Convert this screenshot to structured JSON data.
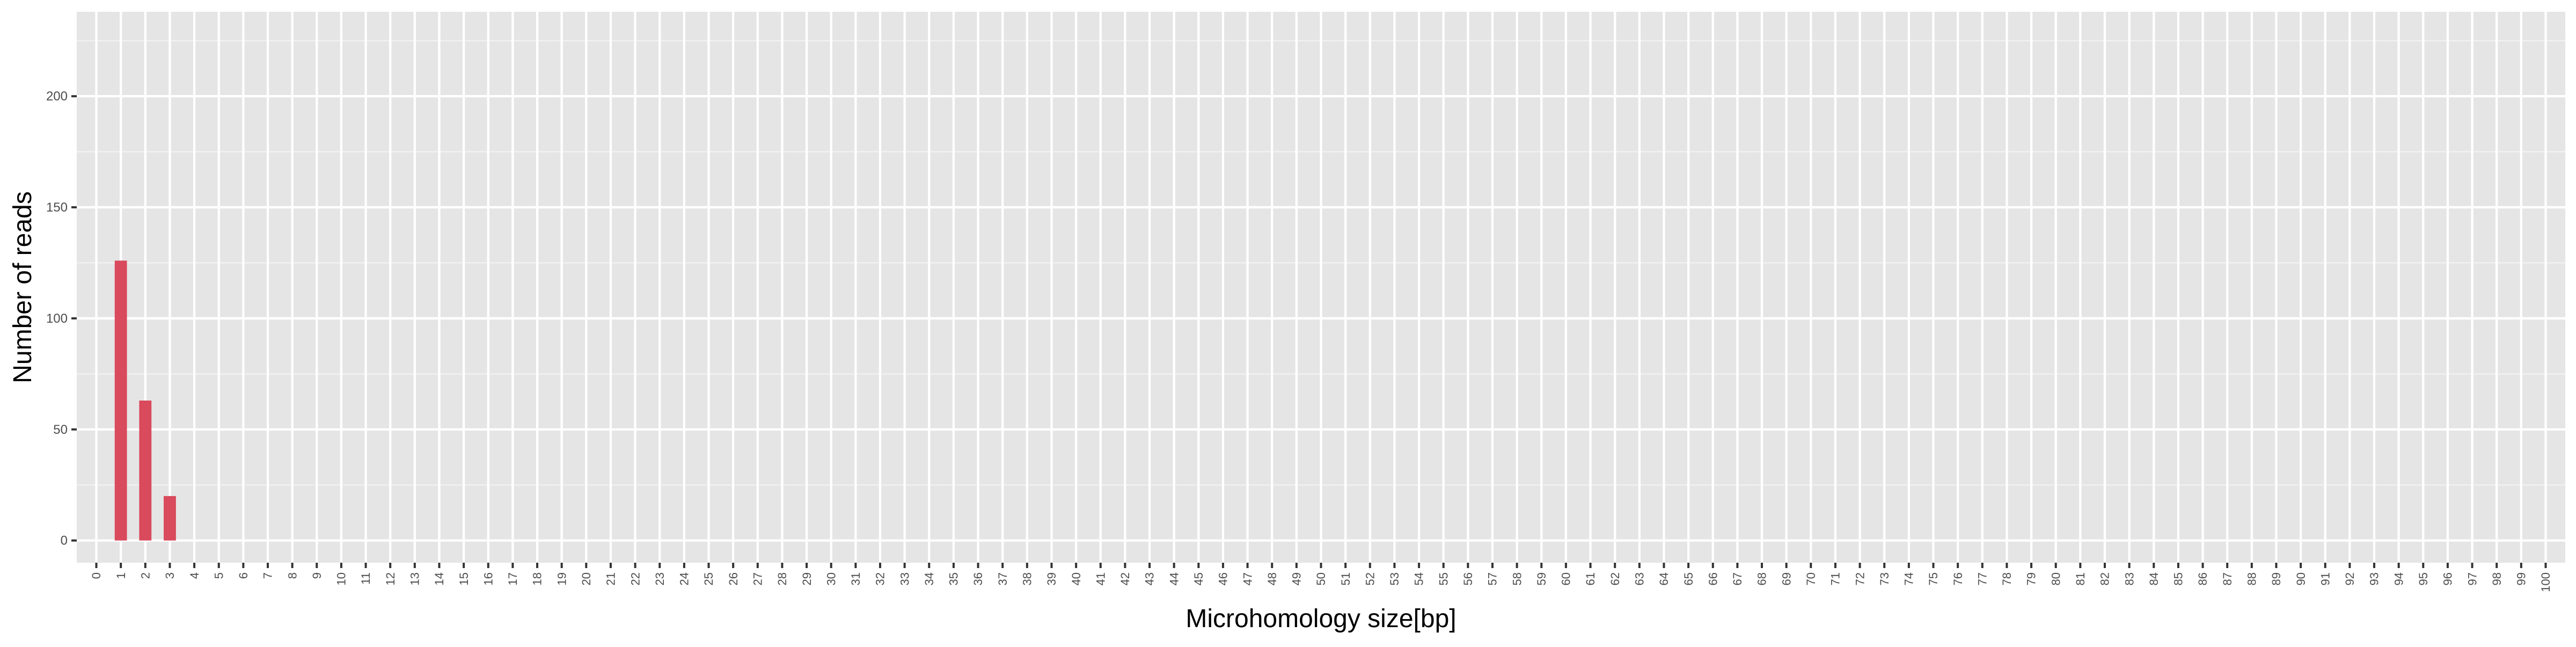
{
  "chart_data": {
    "type": "bar",
    "x": [
      0,
      1,
      2,
      3,
      4,
      5,
      6,
      7,
      8,
      9,
      10,
      11,
      12,
      13,
      14,
      15,
      16,
      17,
      18,
      19,
      20,
      21,
      22,
      23,
      24,
      25,
      26,
      27,
      28,
      29,
      30,
      31,
      32,
      33,
      34,
      35,
      36,
      37,
      38,
      39,
      40,
      41,
      42,
      43,
      44,
      45,
      46,
      47,
      48,
      49,
      50,
      51,
      52,
      53,
      54,
      55,
      56,
      57,
      58,
      59,
      60,
      61,
      62,
      63,
      64,
      65,
      66,
      67,
      68,
      69,
      70,
      71,
      72,
      73,
      74,
      75,
      76,
      77,
      78,
      79,
      80,
      81,
      82,
      83,
      84,
      85,
      86,
      87,
      88,
      89,
      90,
      91,
      92,
      93,
      94,
      95,
      96,
      97,
      98,
      99,
      100
    ],
    "values": [
      0,
      126,
      63,
      20,
      0,
      0,
      0,
      0,
      0,
      0,
      0,
      0,
      0,
      0,
      0,
      0,
      0,
      0,
      0,
      0,
      0,
      0,
      0,
      0,
      0,
      0,
      0,
      0,
      0,
      0,
      0,
      0,
      0,
      0,
      0,
      0,
      0,
      0,
      0,
      0,
      0,
      0,
      0,
      0,
      0,
      0,
      0,
      0,
      0,
      0,
      0,
      0,
      0,
      0,
      0,
      0,
      0,
      0,
      0,
      0,
      0,
      0,
      0,
      0,
      0,
      0,
      0,
      0,
      0,
      0,
      0,
      0,
      0,
      0,
      0,
      0,
      0,
      0,
      0,
      0,
      0,
      0,
      0,
      0,
      0,
      0,
      0,
      0,
      0,
      0,
      0,
      0,
      0,
      0,
      0,
      0,
      0,
      0,
      0,
      0,
      0
    ],
    "xlabel": "Microhomology size[bp]",
    "ylabel": "Number of reads",
    "xlim": [
      -0.8,
      100.8
    ],
    "ylim": [
      -10,
      238
    ],
    "yticks": [
      0,
      50,
      100,
      150,
      200
    ],
    "grid": true,
    "colors": {
      "bar": "#d94a5c",
      "panel": "#e5e5e5",
      "grid_major": "#ffffff",
      "grid_minor": "#f2f2f2",
      "tick_text": "#4d4d4d",
      "axis_title": "#000000"
    }
  }
}
